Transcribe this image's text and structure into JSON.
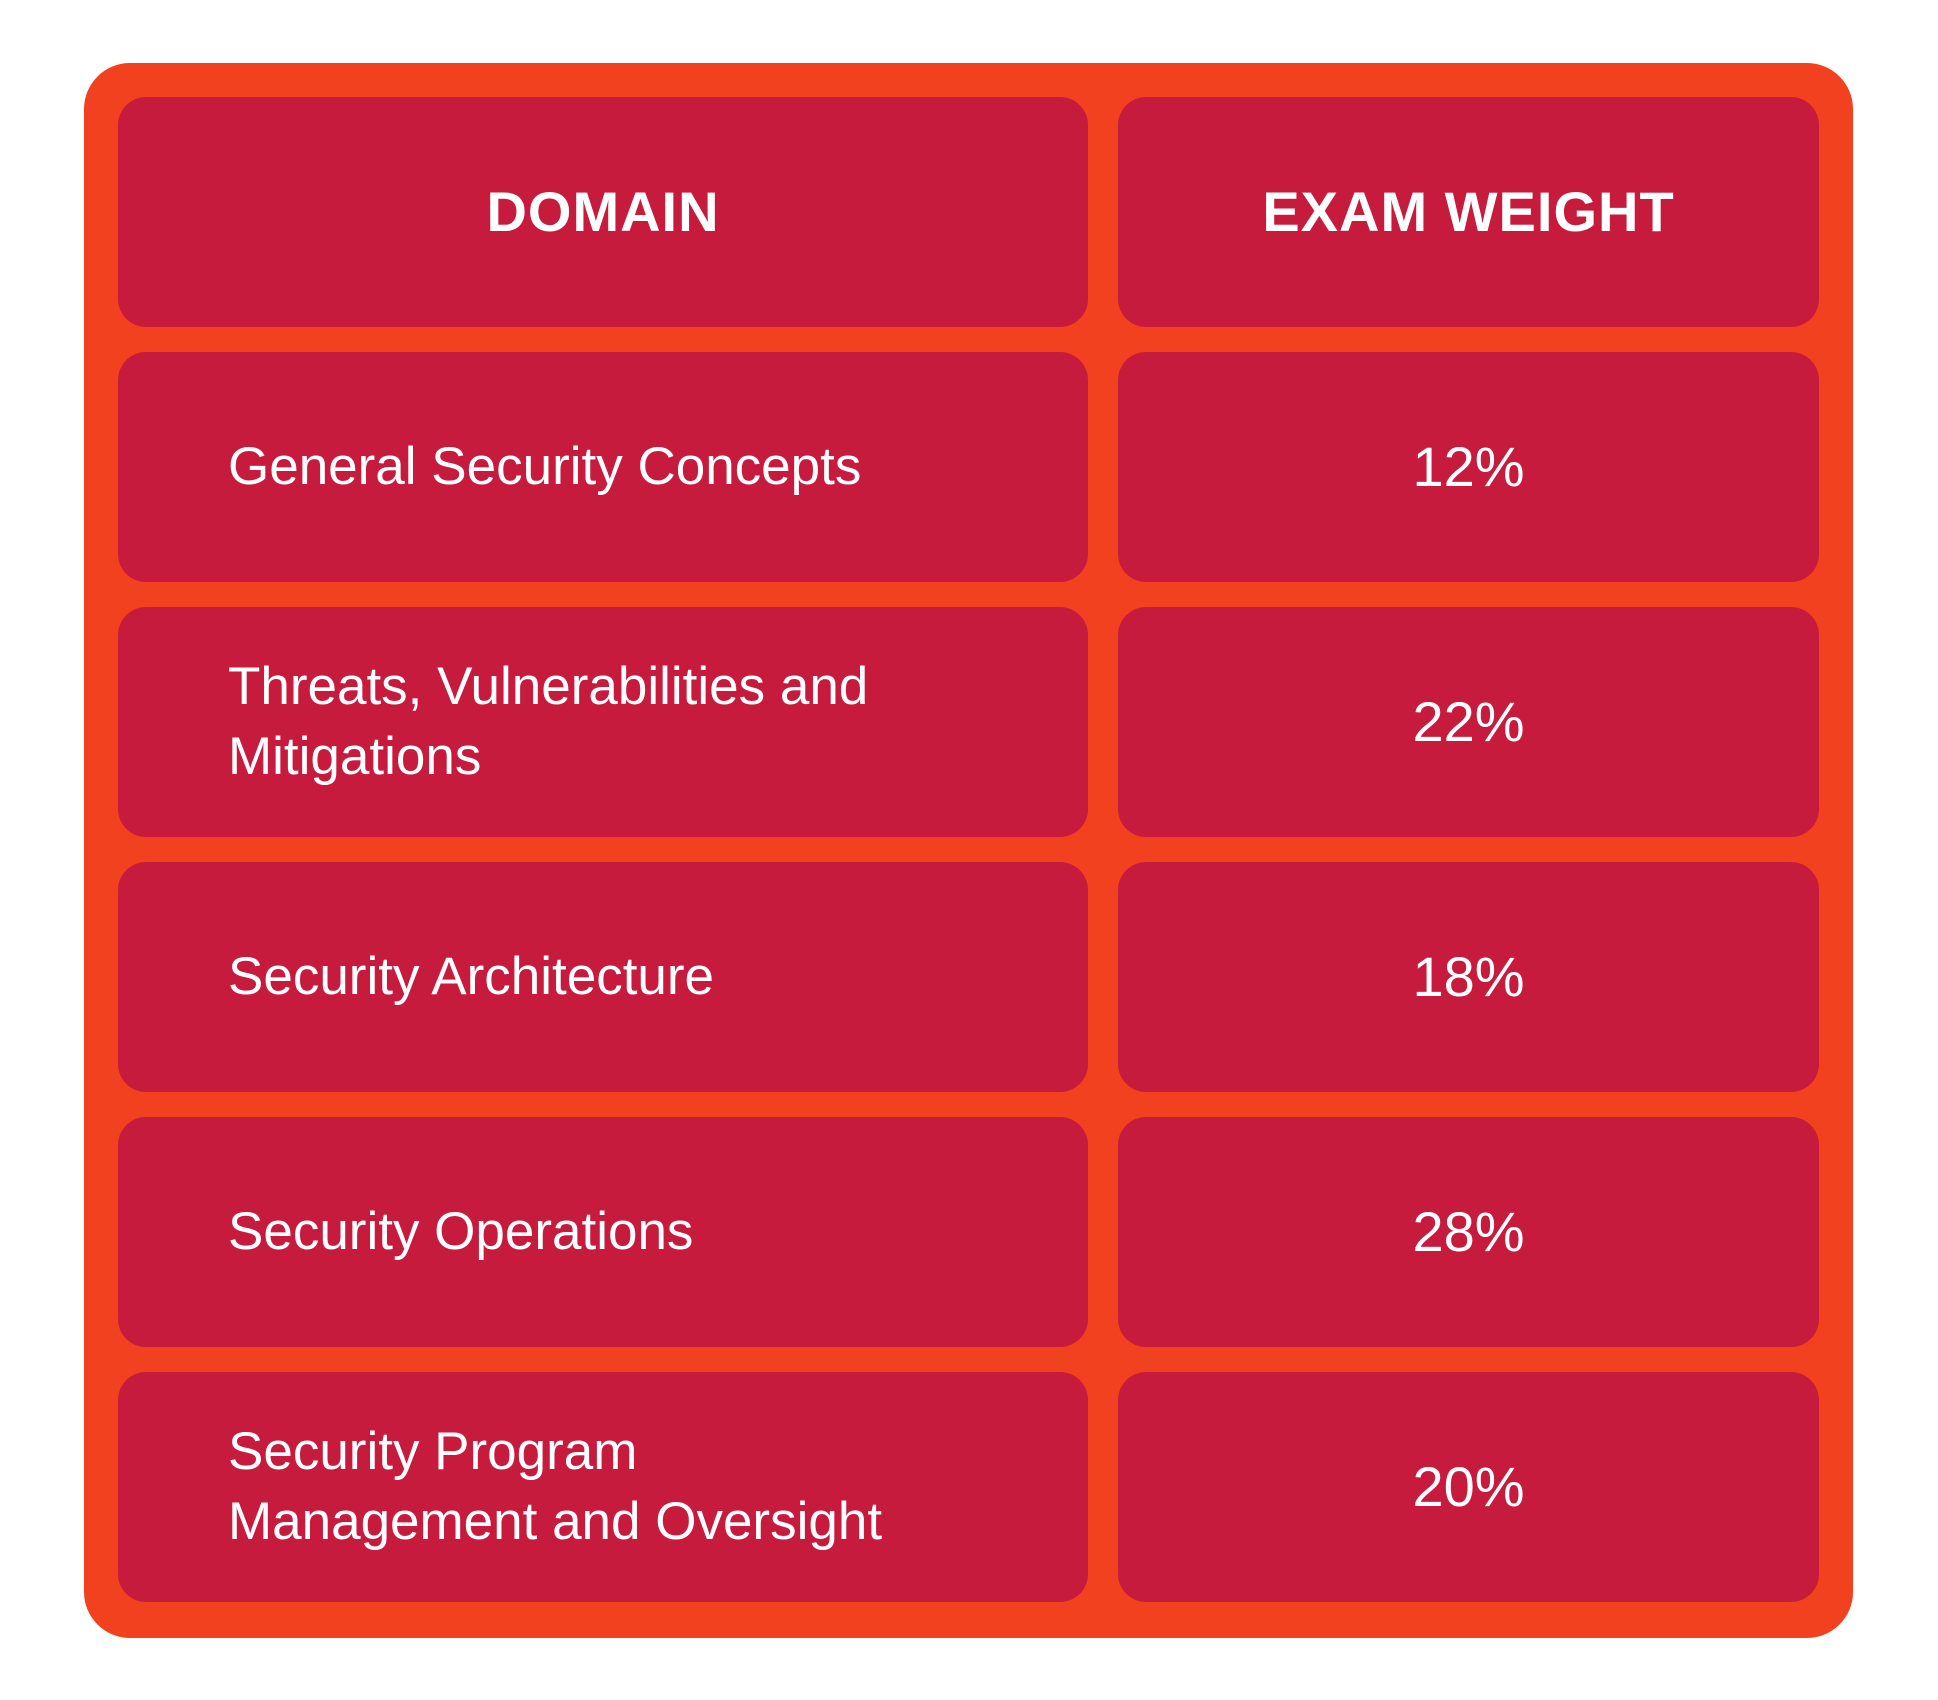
{
  "table": {
    "headers": {
      "domain": "DOMAIN",
      "weight": "EXAM WEIGHT"
    },
    "rows": [
      {
        "domain": "General Security Concepts",
        "weight": "12%"
      },
      {
        "domain": "Threats, Vulnerabilities and\nMitigations",
        "weight": "22%"
      },
      {
        "domain": "Security Architecture",
        "weight": "18%"
      },
      {
        "domain": "Security Operations",
        "weight": "28%"
      },
      {
        "domain": "Security Program\nManagement and Oversight",
        "weight": "20%"
      }
    ]
  },
  "chart_data": {
    "type": "table",
    "title": "",
    "columns": [
      "DOMAIN",
      "EXAM WEIGHT"
    ],
    "categories": [
      "General Security Concepts",
      "Threats, Vulnerabilities and Mitigations",
      "Security Architecture",
      "Security Operations",
      "Security Program Management and Oversight"
    ],
    "values": [
      12,
      22,
      18,
      28,
      20
    ],
    "unit": "%"
  },
  "colors": {
    "frame": "#F2411E",
    "cell": "#C61B3D",
    "text": "#FFFFFF"
  }
}
